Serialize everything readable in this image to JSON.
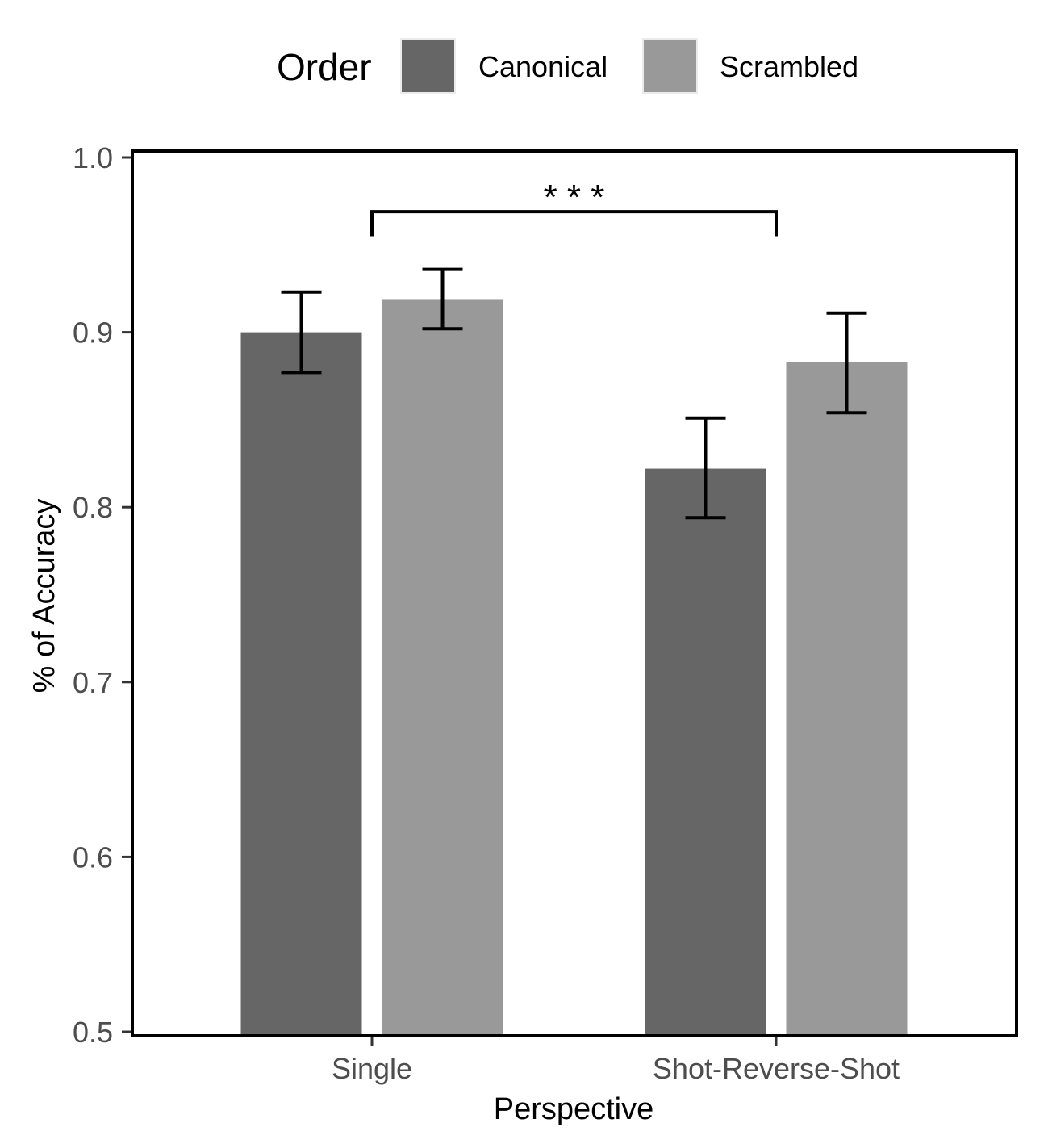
{
  "chart_data": {
    "type": "bar",
    "xlabel": "Perspective",
    "ylabel": "% of Accuracy",
    "categories": [
      "Single",
      "Shot-Reverse-Shot"
    ],
    "series": [
      {
        "name": "Canonical",
        "color": "#666666",
        "values": [
          0.9,
          0.822
        ],
        "error_low": [
          0.877,
          0.794
        ],
        "error_high": [
          0.923,
          0.851
        ]
      },
      {
        "name": "Scrambled",
        "color": "#999999",
        "values": [
          0.919,
          0.883
        ],
        "error_low": [
          0.902,
          0.854
        ],
        "error_high": [
          0.936,
          0.911
        ]
      }
    ],
    "ylim": [
      0.5,
      1.0
    ],
    "yticks": [
      "0.5",
      "0.6",
      "0.7",
      "0.8",
      "0.9",
      "1.0"
    ],
    "legend": {
      "title": "Order",
      "position": "top"
    },
    "grid": false,
    "annotations": [
      {
        "text": "* * *",
        "type": "significance-bracket",
        "from": "Single",
        "to": "Shot-Reverse-Shot",
        "y_bottom": 0.955,
        "y_top": 0.969
      }
    ]
  }
}
